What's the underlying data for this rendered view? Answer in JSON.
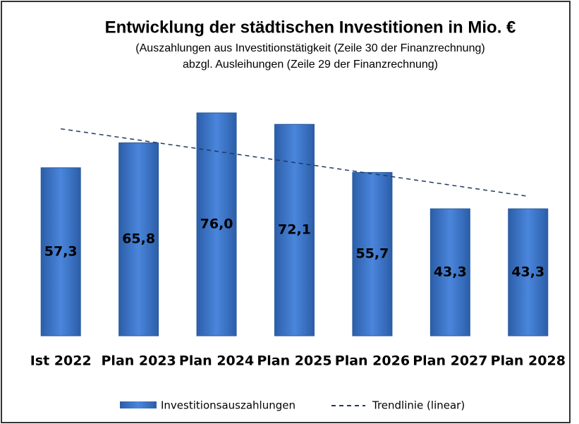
{
  "chart_data": {
    "type": "bar",
    "title": "Entwicklung der städtischen Investitionen in Mio. €",
    "subtitle": [
      "(Auszahlungen  aus Investitionstätigkeit (Zeile 30 der Finanzrechnung)",
      "abzgl.  Ausleihungen  (Zeile 29 der Finanzrechnung)"
    ],
    "categories": [
      "Ist 2022",
      "Plan 2023",
      "Plan 2024",
      "Plan 2025",
      "Plan 2026",
      "Plan 2027",
      "Plan 2028"
    ],
    "series": [
      {
        "name": "Investitionsauszahlungen",
        "color": "#3a70c4",
        "values": [
          57.3,
          65.8,
          76.0,
          72.1,
          55.7,
          43.3,
          43.3
        ],
        "value_labels": [
          "57,3",
          "65,8",
          "76,0",
          "72,1",
          "55,7",
          "43,3",
          "43,3"
        ]
      }
    ],
    "trendline": {
      "name": "Trendlinie (linear)",
      "type": "linear",
      "color": "#1f3864"
    }
  }
}
